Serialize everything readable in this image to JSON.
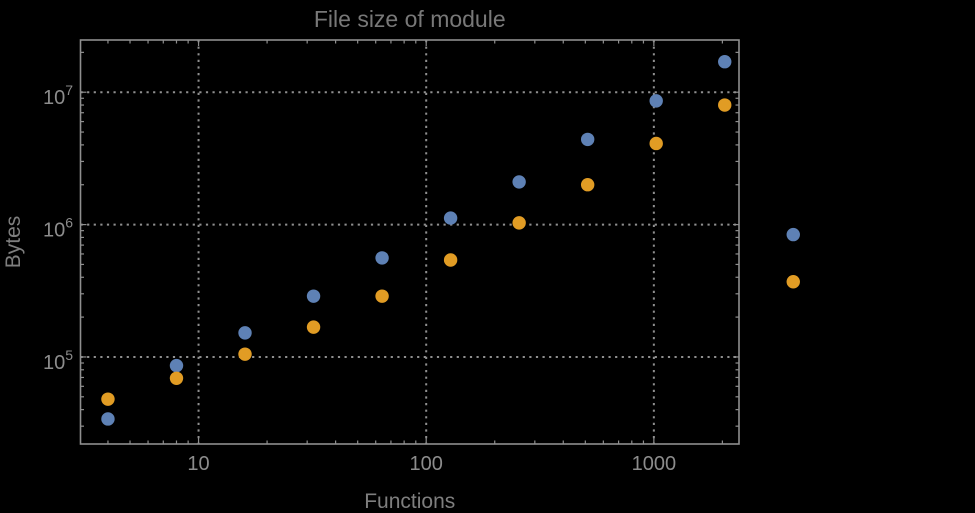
{
  "page": {
    "background_color": "#000000"
  },
  "chart_data": {
    "type": "scatter",
    "title": "File size of module",
    "xlabel": "Functions",
    "ylabel": "Bytes",
    "xscale": "log",
    "yscale": "log",
    "xlim": [
      3.03,
      2366
    ],
    "ylim": [
      22000,
      24800000
    ],
    "grid": {
      "on": true,
      "style": "dotted",
      "x_values": [
        10,
        100,
        1000
      ],
      "y_values": [
        100000,
        1000000,
        10000000
      ]
    },
    "x_tick_labels": [
      "10",
      "100",
      "1000"
    ],
    "y_tick_labels": [
      {
        "base": "10",
        "exp": "5"
      },
      {
        "base": "10",
        "exp": "6"
      },
      {
        "base": "10",
        "exp": "7"
      }
    ],
    "legend": "none",
    "x": [
      4,
      8,
      16,
      32,
      64,
      128,
      256,
      512,
      1024,
      2048,
      4096
    ],
    "series": [
      {
        "name": "blue-series",
        "color": "#5e81b5",
        "values": [
          34000,
          86000,
          152000,
          288000,
          560000,
          1120000,
          2100000,
          4400000,
          8600000,
          17000000,
          840000
        ]
      },
      {
        "name": "orange-series",
        "color": "#e19c24",
        "values": [
          48000,
          69000,
          105000,
          168000,
          288000,
          540000,
          1030000,
          2000000,
          4100000,
          8000000,
          370000
        ]
      }
    ],
    "marker": {
      "shape": "circle",
      "radius_px": 6.7
    },
    "note": "points at x=4096 are drawn outside the right frame edge"
  },
  "style": {
    "frame_color": "#8f8f8f",
    "grid_color": "#8f8f8f",
    "tick_color": "#8f8f8f",
    "tick_label_color": "#8c8c8c",
    "title_color": "#787878",
    "axis_label_color": "#7e7e7e"
  }
}
